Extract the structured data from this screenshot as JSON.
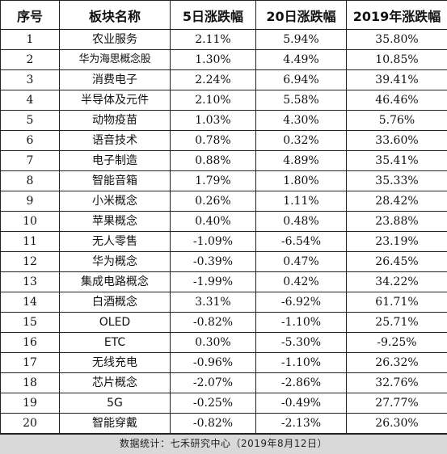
{
  "table": {
    "headers": [
      "序号",
      "板块名称",
      "5日涨跌幅",
      "20日涨跌幅",
      "2019年涨跌幅"
    ],
    "rows": [
      [
        "1",
        "农业服务",
        "2.11%",
        "5.94%",
        "35.80%"
      ],
      [
        "2",
        "华为海思概念股",
        "1.30%",
        "4.49%",
        "10.85%"
      ],
      [
        "3",
        "消费电子",
        "2.24%",
        "6.94%",
        "39.41%"
      ],
      [
        "4",
        "半导体及元件",
        "2.10%",
        "5.58%",
        "46.46%"
      ],
      [
        "5",
        "动物疫苗",
        "1.03%",
        "4.30%",
        "5.76%"
      ],
      [
        "6",
        "语音技术",
        "0.78%",
        "0.32%",
        "33.60%"
      ],
      [
        "7",
        "电子制造",
        "0.88%",
        "4.89%",
        "35.41%"
      ],
      [
        "8",
        "智能音箱",
        "1.79%",
        "1.80%",
        "35.33%"
      ],
      [
        "9",
        "小米概念",
        "0.26%",
        "1.11%",
        "28.42%"
      ],
      [
        "10",
        "苹果概念",
        "0.40%",
        "0.48%",
        "23.88%"
      ],
      [
        "11",
        "无人零售",
        "-1.09%",
        "-6.54%",
        "23.19%"
      ],
      [
        "12",
        "华为概念",
        "-0.39%",
        "0.47%",
        "26.45%"
      ],
      [
        "13",
        "集成电路概念",
        "-1.99%",
        "0.42%",
        "34.22%"
      ],
      [
        "14",
        "白酒概念",
        "3.31%",
        "-6.92%",
        "61.71%"
      ],
      [
        "15",
        "OLED",
        "-0.82%",
        "-1.10%",
        "25.71%"
      ],
      [
        "16",
        "ETC",
        "0.30%",
        "-5.30%",
        "-9.25%"
      ],
      [
        "17",
        "无线充电",
        "-0.96%",
        "-1.10%",
        "26.32%"
      ],
      [
        "18",
        "芯片概念",
        "-2.07%",
        "-2.86%",
        "32.76%"
      ],
      [
        "19",
        "5G",
        "-0.25%",
        "-0.49%",
        "27.77%"
      ],
      [
        "20",
        "智能穿戴",
        "-0.82%",
        "-2.13%",
        "26.30%"
      ]
    ]
  },
  "footer": {
    "source": "数据统计：七禾研究中心（2019年8月12日）"
  }
}
